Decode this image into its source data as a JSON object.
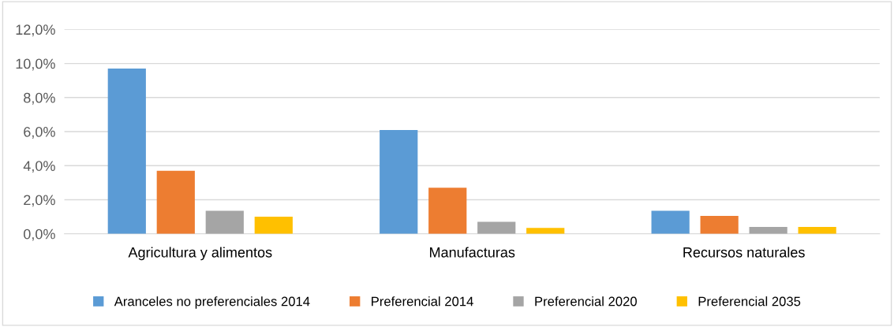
{
  "chart_data": {
    "type": "bar",
    "categories": [
      "Agricultura y alimentos",
      "Manufacturas",
      "Recursos naturales"
    ],
    "series": [
      {
        "name": "Aranceles no preferenciales 2014",
        "color": "#5b9bd5",
        "values": [
          9.7,
          6.1,
          1.35
        ]
      },
      {
        "name": "Preferencial 2014",
        "color": "#ed7d31",
        "values": [
          3.7,
          2.7,
          1.05
        ]
      },
      {
        "name": "Preferencial 2020",
        "color": "#a5a5a5",
        "values": [
          1.35,
          0.7,
          0.4
        ]
      },
      {
        "name": "Preferencial 2035",
        "color": "#ffc000",
        "values": [
          1.0,
          0.35,
          0.4
        ]
      }
    ],
    "ylim": [
      0,
      12
    ],
    "yticks": [
      {
        "value": 0,
        "label": "0,0%"
      },
      {
        "value": 2,
        "label": "2,0%"
      },
      {
        "value": 4,
        "label": "4,0%"
      },
      {
        "value": 6,
        "label": "6,0%"
      },
      {
        "value": 8,
        "label": "8,0%"
      },
      {
        "value": 10,
        "label": "10,0%"
      },
      {
        "value": 12,
        "label": "12,0%"
      }
    ],
    "grid": "y",
    "legend": "bottom"
  }
}
